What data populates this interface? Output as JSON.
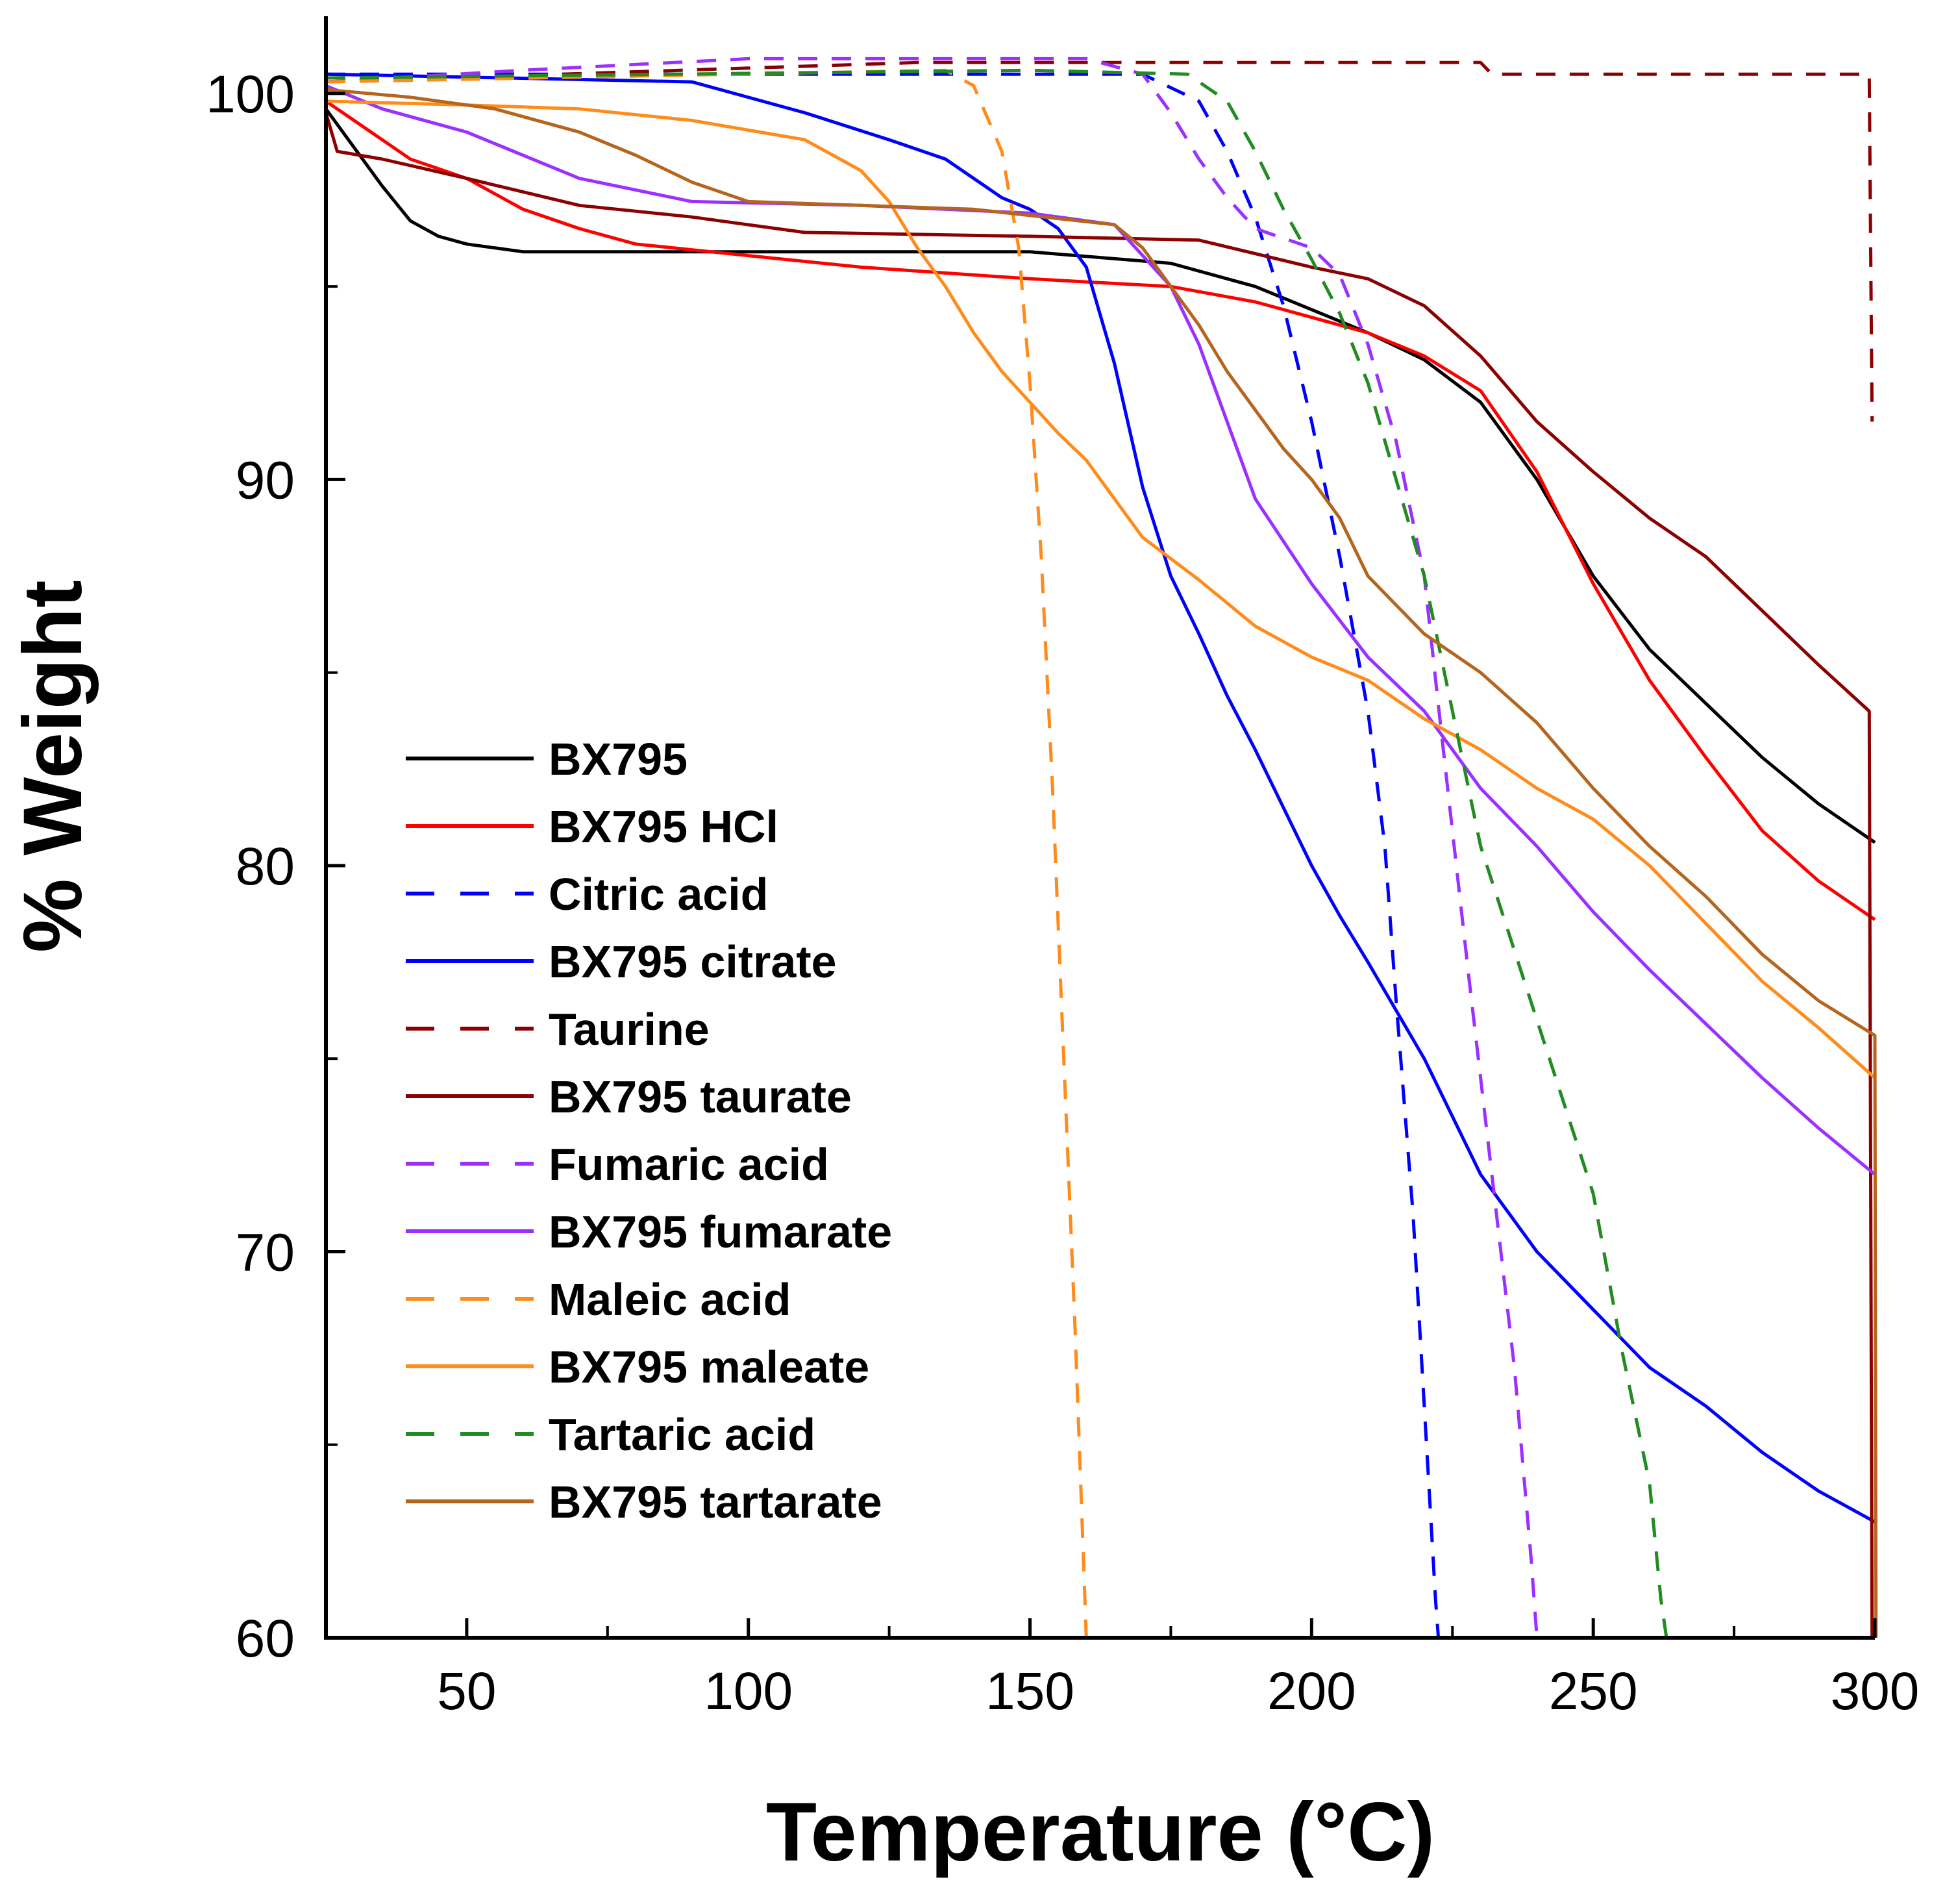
{
  "chart_data": {
    "type": "line",
    "title": "",
    "xlabel": "Temperature (°C)",
    "ylabel": "% Weight",
    "xlim": [
      25,
      300
    ],
    "ylim": [
      60,
      102
    ],
    "x_ticks": [
      50,
      100,
      150,
      200,
      250,
      300
    ],
    "y_ticks": [
      60,
      70,
      80,
      90,
      100
    ],
    "legend_position": "lower-left",
    "grid": false,
    "series": [
      {
        "name": "BX795",
        "color": "#000000",
        "dash": "solid",
        "points": [
          [
            25,
            99.6
          ],
          [
            30,
            98.6
          ],
          [
            35,
            97.6
          ],
          [
            40,
            96.7
          ],
          [
            45,
            96.3
          ],
          [
            50,
            96.1
          ],
          [
            60,
            95.9
          ],
          [
            100,
            95.9
          ],
          [
            150,
            95.9
          ],
          [
            175,
            95.6
          ],
          [
            190,
            95.0
          ],
          [
            200,
            94.4
          ],
          [
            210,
            93.8
          ],
          [
            220,
            93.1
          ],
          [
            230,
            92.0
          ],
          [
            240,
            90.0
          ],
          [
            250,
            87.5
          ],
          [
            260,
            85.6
          ],
          [
            270,
            84.2
          ],
          [
            280,
            82.8
          ],
          [
            290,
            81.6
          ],
          [
            300,
            80.6
          ]
        ]
      },
      {
        "name": "BX795 HCl",
        "color": "#ff0000",
        "dash": "solid",
        "points": [
          [
            25,
            99.8
          ],
          [
            30,
            99.3
          ],
          [
            40,
            98.3
          ],
          [
            50,
            97.8
          ],
          [
            60,
            97.0
          ],
          [
            70,
            96.5
          ],
          [
            80,
            96.1
          ],
          [
            100,
            95.8
          ],
          [
            120,
            95.5
          ],
          [
            150,
            95.2
          ],
          [
            175,
            95.0
          ],
          [
            190,
            94.6
          ],
          [
            200,
            94.2
          ],
          [
            210,
            93.8
          ],
          [
            220,
            93.2
          ],
          [
            230,
            92.3
          ],
          [
            240,
            90.2
          ],
          [
            250,
            87.3
          ],
          [
            260,
            84.8
          ],
          [
            270,
            82.8
          ],
          [
            280,
            80.9
          ],
          [
            290,
            79.6
          ],
          [
            300,
            78.6
          ]
        ]
      },
      {
        "name": "Citric acid",
        "color": "#0000ff",
        "dash": "dashed",
        "points": [
          [
            25,
            100.5
          ],
          [
            170,
            100.5
          ],
          [
            180,
            99.8
          ],
          [
            185,
            98.5
          ],
          [
            190,
            96.8
          ],
          [
            195,
            94.5
          ],
          [
            200,
            91.5
          ],
          [
            205,
            88.0
          ],
          [
            210,
            84.0
          ],
          [
            213,
            80.5
          ],
          [
            215,
            76.5
          ],
          [
            218,
            71.0
          ],
          [
            220,
            66.0
          ],
          [
            222,
            61.0
          ],
          [
            222.5,
            60.0
          ]
        ]
      },
      {
        "name": "BX795 citrate",
        "color": "#0000ff",
        "dash": "solid",
        "points": [
          [
            25,
            100.5
          ],
          [
            90,
            100.3
          ],
          [
            110,
            99.5
          ],
          [
            125,
            98.8
          ],
          [
            135,
            98.3
          ],
          [
            145,
            97.3
          ],
          [
            150,
            97.0
          ],
          [
            155,
            96.5
          ],
          [
            160,
            95.5
          ],
          [
            165,
            93.0
          ],
          [
            170,
            89.8
          ],
          [
            175,
            87.5
          ],
          [
            180,
            86.0
          ],
          [
            185,
            84.4
          ],
          [
            190,
            83.0
          ],
          [
            195,
            81.5
          ],
          [
            200,
            80.0
          ],
          [
            205,
            78.7
          ],
          [
            210,
            77.5
          ],
          [
            220,
            75.0
          ],
          [
            230,
            72.0
          ],
          [
            240,
            70.0
          ],
          [
            250,
            68.5
          ],
          [
            260,
            67.0
          ],
          [
            270,
            66.0
          ],
          [
            280,
            64.8
          ],
          [
            290,
            63.8
          ],
          [
            300,
            63.0
          ]
        ]
      },
      {
        "name": "Taurine",
        "color": "#8b0000",
        "dash": "dashed",
        "points": [
          [
            25,
            100.3
          ],
          [
            130,
            100.8
          ],
          [
            230,
            100.8
          ],
          [
            232,
            100.5
          ],
          [
            299,
            100.5
          ],
          [
            299.5,
            91.5
          ]
        ]
      },
      {
        "name": "BX795 taurate",
        "color": "#8b0000",
        "dash": "solid",
        "points": [
          [
            25,
            99.5
          ],
          [
            27,
            98.5
          ],
          [
            35,
            98.3
          ],
          [
            50,
            97.8
          ],
          [
            70,
            97.1
          ],
          [
            90,
            96.8
          ],
          [
            110,
            96.4
          ],
          [
            150,
            96.3
          ],
          [
            180,
            96.2
          ],
          [
            200,
            95.5
          ],
          [
            210,
            95.2
          ],
          [
            220,
            94.5
          ],
          [
            230,
            93.2
          ],
          [
            240,
            91.5
          ],
          [
            250,
            90.2
          ],
          [
            260,
            89.0
          ],
          [
            270,
            88.0
          ],
          [
            280,
            86.6
          ],
          [
            290,
            85.2
          ],
          [
            299,
            84.0
          ],
          [
            299.5,
            60.0
          ]
        ]
      },
      {
        "name": "Fumaric acid",
        "color": "#9b30ff",
        "dash": "dashed",
        "points": [
          [
            25,
            100.3
          ],
          [
            60,
            100.6
          ],
          [
            100,
            100.9
          ],
          [
            160,
            100.9
          ],
          [
            170,
            100.5
          ],
          [
            175,
            99.5
          ],
          [
            180,
            98.3
          ],
          [
            185,
            97.3
          ],
          [
            190,
            96.5
          ],
          [
            200,
            96.0
          ],
          [
            205,
            95.3
          ],
          [
            210,
            93.5
          ],
          [
            215,
            91.0
          ],
          [
            220,
            87.5
          ],
          [
            223,
            83.5
          ],
          [
            228,
            77.0
          ],
          [
            232,
            72.0
          ],
          [
            236,
            67.0
          ],
          [
            239,
            62.0
          ],
          [
            240,
            60.0
          ]
        ]
      },
      {
        "name": "BX795 fumarate",
        "color": "#9b30ff",
        "dash": "solid",
        "points": [
          [
            25,
            100.2
          ],
          [
            35,
            99.6
          ],
          [
            50,
            99.0
          ],
          [
            70,
            97.8
          ],
          [
            90,
            97.2
          ],
          [
            120,
            97.1
          ],
          [
            150,
            96.9
          ],
          [
            165,
            96.6
          ],
          [
            170,
            95.8
          ],
          [
            175,
            95.0
          ],
          [
            180,
            93.5
          ],
          [
            185,
            91.5
          ],
          [
            190,
            89.5
          ],
          [
            200,
            87.3
          ],
          [
            210,
            85.4
          ],
          [
            220,
            84.0
          ],
          [
            230,
            82.0
          ],
          [
            240,
            80.5
          ],
          [
            250,
            78.8
          ],
          [
            260,
            77.3
          ],
          [
            270,
            75.9
          ],
          [
            280,
            74.5
          ],
          [
            290,
            73.2
          ],
          [
            300,
            72.0
          ]
        ]
      },
      {
        "name": "Maleic acid",
        "color": "#ff8c1a",
        "dash": "dashed",
        "points": [
          [
            25,
            100.3
          ],
          [
            135,
            100.6
          ],
          [
            140,
            100.2
          ],
          [
            145,
            98.5
          ],
          [
            148,
            96.0
          ],
          [
            150,
            92.5
          ],
          [
            152,
            88.0
          ],
          [
            154,
            82.0
          ],
          [
            156,
            75.0
          ],
          [
            158,
            68.0
          ],
          [
            159.5,
            62.0
          ],
          [
            160,
            60.0
          ]
        ]
      },
      {
        "name": "BX795 maleate",
        "color": "#ff8c1a",
        "dash": "solid",
        "points": [
          [
            25,
            99.8
          ],
          [
            50,
            99.7
          ],
          [
            70,
            99.6
          ],
          [
            90,
            99.3
          ],
          [
            110,
            98.8
          ],
          [
            120,
            98.0
          ],
          [
            125,
            97.2
          ],
          [
            130,
            96.0
          ],
          [
            135,
            95.0
          ],
          [
            140,
            93.8
          ],
          [
            145,
            92.8
          ],
          [
            150,
            92.0
          ],
          [
            155,
            91.2
          ],
          [
            160,
            90.5
          ],
          [
            165,
            89.5
          ],
          [
            170,
            88.5
          ],
          [
            180,
            87.4
          ],
          [
            190,
            86.2
          ],
          [
            200,
            85.4
          ],
          [
            210,
            84.8
          ],
          [
            220,
            83.8
          ],
          [
            230,
            83.0
          ],
          [
            240,
            82.0
          ],
          [
            250,
            81.2
          ],
          [
            260,
            80.0
          ],
          [
            270,
            78.5
          ],
          [
            280,
            77.0
          ],
          [
            290,
            75.8
          ],
          [
            300,
            74.5
          ]
        ]
      },
      {
        "name": "Tartaric acid",
        "color": "#228b22",
        "dash": "dashed",
        "points": [
          [
            25,
            100.4
          ],
          [
            150,
            100.6
          ],
          [
            178,
            100.5
          ],
          [
            185,
            99.8
          ],
          [
            190,
            98.5
          ],
          [
            195,
            97.0
          ],
          [
            200,
            95.7
          ],
          [
            205,
            94.3
          ],
          [
            210,
            92.5
          ],
          [
            215,
            90.0
          ],
          [
            220,
            87.5
          ],
          [
            225,
            84.0
          ],
          [
            230,
            80.5
          ],
          [
            240,
            76.0
          ],
          [
            250,
            71.5
          ],
          [
            255,
            67.5
          ],
          [
            260,
            64.0
          ],
          [
            262,
            61.0
          ],
          [
            263,
            60.0
          ]
        ]
      },
      {
        "name": "BX795 tartarate",
        "color": "#b5651d",
        "dash": "solid",
        "points": [
          [
            25,
            100.1
          ],
          [
            40,
            99.9
          ],
          [
            55,
            99.6
          ],
          [
            70,
            99.0
          ],
          [
            80,
            98.4
          ],
          [
            90,
            97.7
          ],
          [
            100,
            97.2
          ],
          [
            120,
            97.1
          ],
          [
            140,
            97.0
          ],
          [
            165,
            96.6
          ],
          [
            170,
            96.0
          ],
          [
            175,
            95.0
          ],
          [
            180,
            94.0
          ],
          [
            185,
            92.8
          ],
          [
            190,
            91.8
          ],
          [
            195,
            90.8
          ],
          [
            200,
            90.0
          ],
          [
            205,
            89.0
          ],
          [
            210,
            87.5
          ],
          [
            220,
            86.0
          ],
          [
            230,
            85.0
          ],
          [
            240,
            83.7
          ],
          [
            250,
            82.0
          ],
          [
            260,
            80.5
          ],
          [
            270,
            79.2
          ],
          [
            280,
            77.7
          ],
          [
            290,
            76.5
          ],
          [
            300,
            75.6
          ],
          [
            300.2,
            60.0
          ]
        ]
      }
    ]
  }
}
